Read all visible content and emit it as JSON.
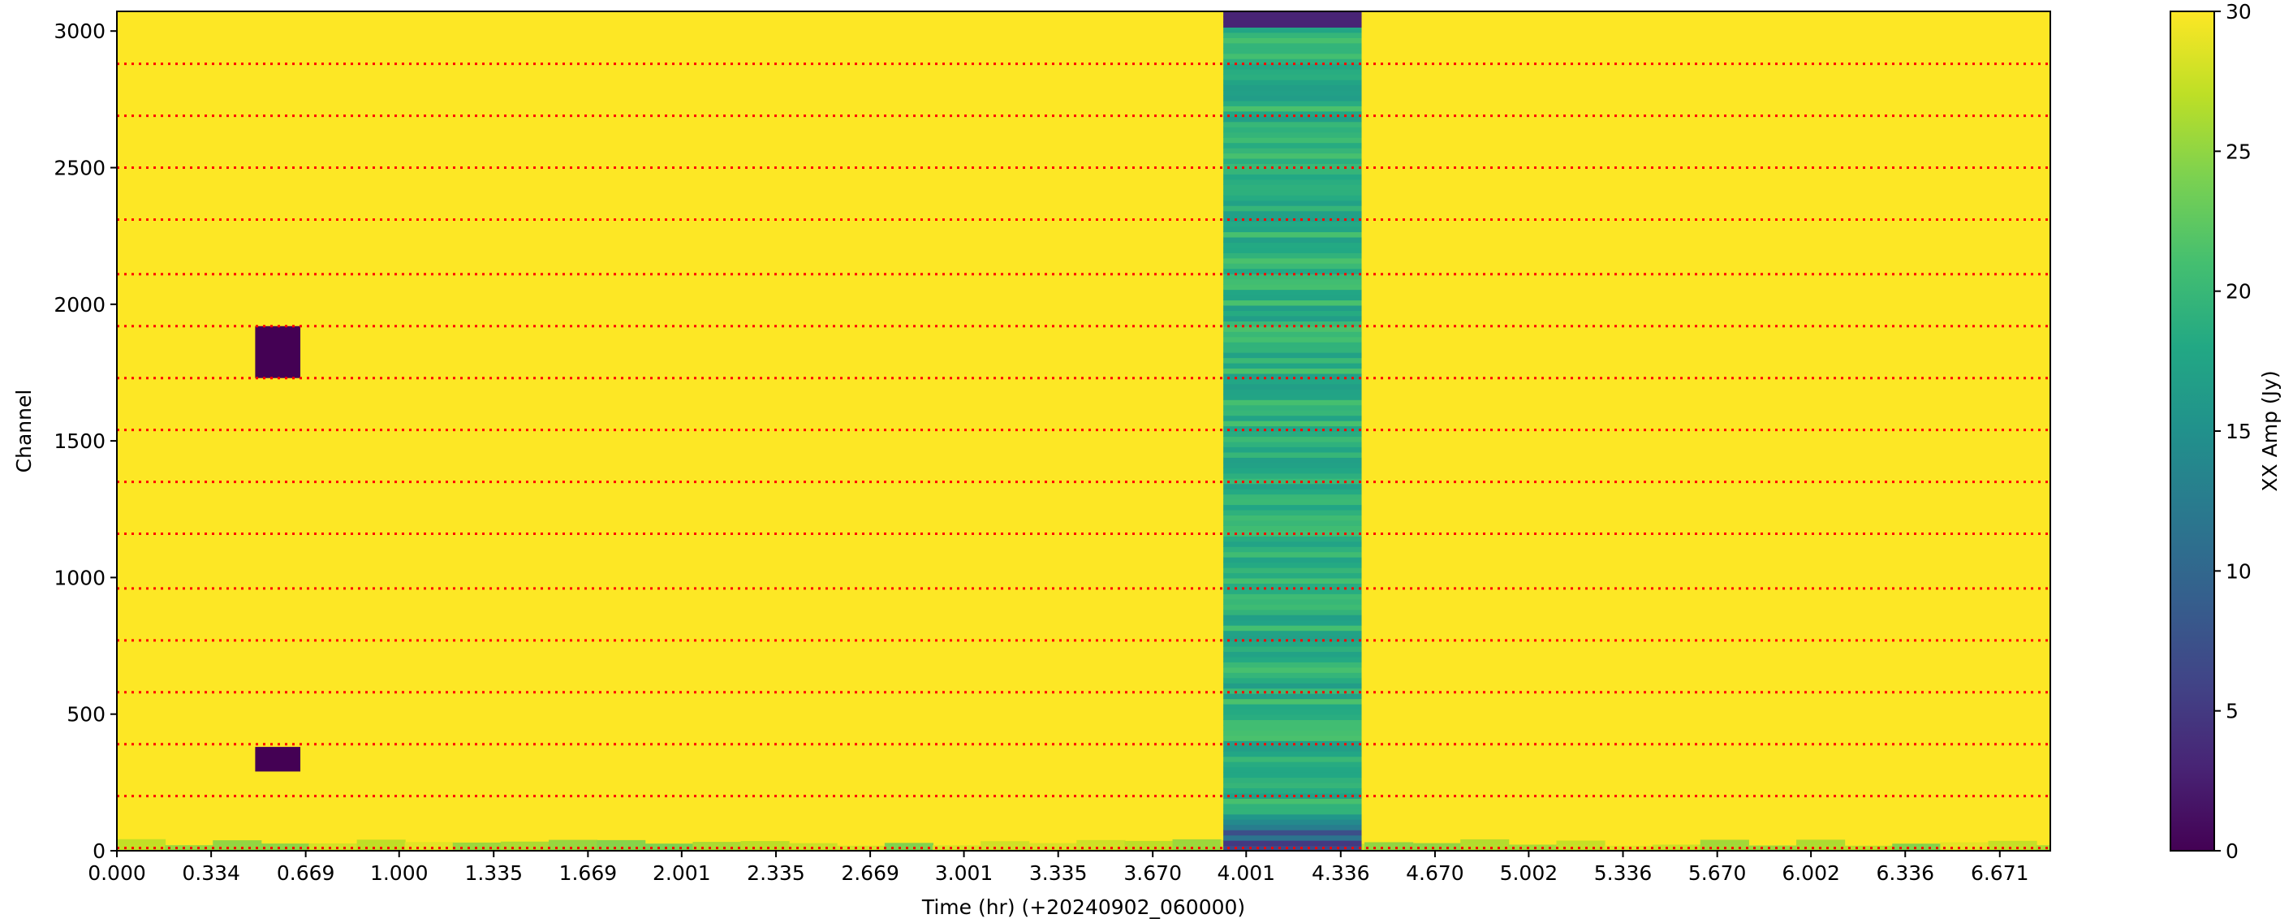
{
  "chart_data": {
    "type": "heatmap",
    "title": "",
    "xlabel": "Time (hr) (+20240902_060000)",
    "ylabel": "Channel",
    "xlim": [
      0,
      6.85
    ],
    "ylim": [
      0,
      3072
    ],
    "x_ticks": [
      "0.000",
      "0.334",
      "0.669",
      "1.000",
      "1.335",
      "1.669",
      "2.001",
      "2.335",
      "2.669",
      "3.001",
      "3.335",
      "3.670",
      "4.001",
      "4.336",
      "4.670",
      "5.002",
      "5.336",
      "5.670",
      "6.002",
      "6.336",
      "6.671"
    ],
    "y_ticks": [
      0,
      500,
      1000,
      1500,
      2000,
      2500,
      3000
    ],
    "background_value": 30,
    "low_amplitude_band": {
      "time_start": 3.92,
      "time_end": 4.41,
      "channel_start": 0,
      "channel_end": 3072,
      "typical_value": 19,
      "edge_value": 3
    },
    "flagged_blocks": [
      {
        "time_start": 0.49,
        "time_end": 0.65,
        "channel_start": 1730,
        "channel_end": 1920,
        "value": 0
      },
      {
        "time_start": 0.49,
        "time_end": 0.65,
        "channel_start": 290,
        "channel_end": 380,
        "value": 0
      }
    ],
    "low_channel_strip": {
      "channel_start": 0,
      "channel_end": 50,
      "typical_value": 24
    },
    "channel_boundaries": [
      10,
      200,
      390,
      580,
      770,
      960,
      1160,
      1350,
      1540,
      1730,
      1920,
      2110,
      2310,
      2500,
      2690,
      2880
    ],
    "boundary_color": "#ff0000",
    "colormap": "viridis",
    "colorbar": {
      "label": "XX Amp (Jy)",
      "min": 0,
      "max": 30,
      "ticks": [
        0,
        5,
        10,
        15,
        20,
        25,
        30
      ]
    },
    "grid": false
  }
}
